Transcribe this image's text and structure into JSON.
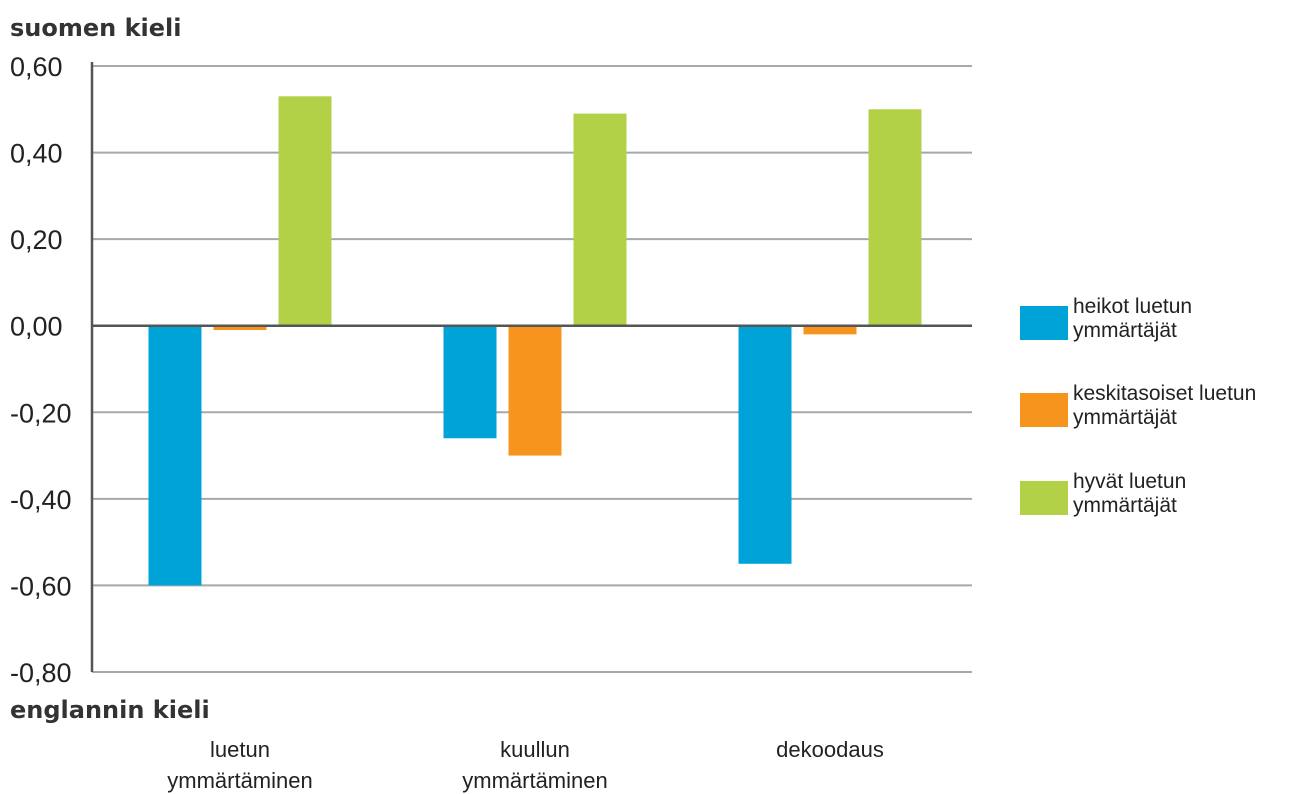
{
  "chart_data": {
    "type": "bar",
    "top_label": "suomen kieli",
    "bottom_label": "englannin kieli",
    "categories": [
      [
        "luetun",
        "ymmärtäminen"
      ],
      [
        "kuullun",
        "ymmärtäminen"
      ],
      [
        "dekoodaus"
      ]
    ],
    "series": [
      {
        "name": [
          "heikot luetun",
          "ymmärtäjät"
        ],
        "color": "#00a3d7",
        "values": [
          -0.6,
          -0.26,
          -0.55
        ]
      },
      {
        "name": [
          "keskitasoiset luetun",
          "ymmärtäjät"
        ],
        "color": "#f7941d",
        "values": [
          -0.01,
          -0.3,
          -0.02
        ]
      },
      {
        "name": [
          "hyvät luetun",
          "ymmärtäjät"
        ],
        "color": "#b3d147",
        "values": [
          0.53,
          0.49,
          0.5
        ]
      }
    ],
    "yticks": [
      "0,60",
      "0,40",
      "0,20",
      "0,00",
      "-0,20",
      "-0,40",
      "-0,60",
      "-0,80"
    ],
    "ytick_values": [
      0.6,
      0.4,
      0.2,
      0.0,
      -0.2,
      -0.4,
      -0.6,
      -0.8
    ],
    "ylim": [
      -0.8,
      0.6
    ],
    "grid": true,
    "legend_position": "right"
  }
}
